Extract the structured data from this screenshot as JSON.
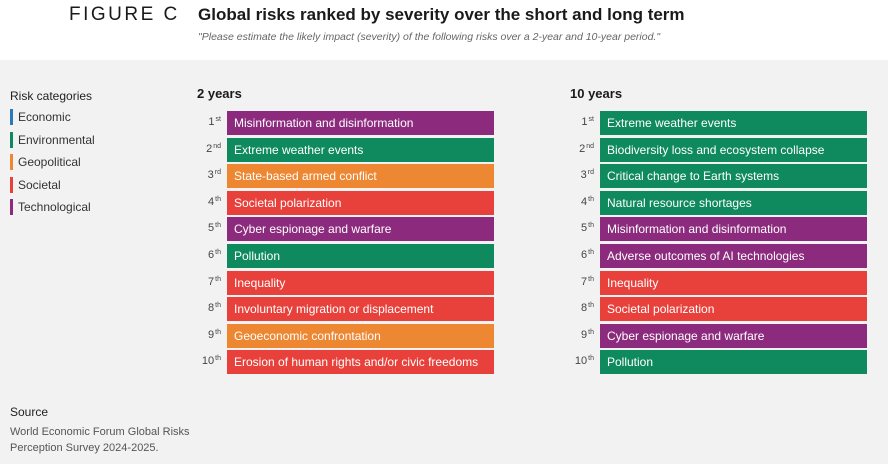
{
  "figure": {
    "label": "FIGURE C",
    "title": "Global risks ranked by severity over the short and long term",
    "subtitle": "\"Please estimate the likely impact (severity) of the following risks over a 2-year and 10-year period.\""
  },
  "legend": {
    "title": "Risk categories",
    "items": [
      {
        "label": "Economic",
        "color": "#2a7ab9"
      },
      {
        "label": "Environmental",
        "color": "#0f8a5f"
      },
      {
        "label": "Geopolitical",
        "color": "#ee8732"
      },
      {
        "label": "Societal",
        "color": "#e8413c"
      },
      {
        "label": "Technological",
        "color": "#8c2b7e"
      }
    ]
  },
  "chart_data": {
    "type": "table",
    "columns": [
      {
        "title": "2 years",
        "rows": [
          {
            "rank": "1",
            "suffix": "st",
            "risk": "Misinformation and disinformation",
            "category": "Technological"
          },
          {
            "rank": "2",
            "suffix": "nd",
            "risk": "Extreme weather events",
            "category": "Environmental"
          },
          {
            "rank": "3",
            "suffix": "rd",
            "risk": "State-based armed conflict",
            "category": "Geopolitical"
          },
          {
            "rank": "4",
            "suffix": "th",
            "risk": "Societal polarization",
            "category": "Societal"
          },
          {
            "rank": "5",
            "suffix": "th",
            "risk": "Cyber espionage and warfare",
            "category": "Technological"
          },
          {
            "rank": "6",
            "suffix": "th",
            "risk": "Pollution",
            "category": "Environmental"
          },
          {
            "rank": "7",
            "suffix": "th",
            "risk": "Inequality",
            "category": "Societal"
          },
          {
            "rank": "8",
            "suffix": "th",
            "risk": "Involuntary migration or displacement",
            "category": "Societal"
          },
          {
            "rank": "9",
            "suffix": "th",
            "risk": "Geoeconomic confrontation",
            "category": "Geopolitical"
          },
          {
            "rank": "10",
            "suffix": "th",
            "risk": "Erosion of human rights and/or civic freedoms",
            "category": "Societal"
          }
        ]
      },
      {
        "title": "10 years",
        "rows": [
          {
            "rank": "1",
            "suffix": "st",
            "risk": "Extreme weather events",
            "category": "Environmental"
          },
          {
            "rank": "2",
            "suffix": "nd",
            "risk": "Biodiversity loss and ecosystem collapse",
            "category": "Environmental"
          },
          {
            "rank": "3",
            "suffix": "rd",
            "risk": "Critical change to Earth systems",
            "category": "Environmental"
          },
          {
            "rank": "4",
            "suffix": "th",
            "risk": "Natural resource shortages",
            "category": "Environmental"
          },
          {
            "rank": "5",
            "suffix": "th",
            "risk": "Misinformation and disinformation",
            "category": "Technological"
          },
          {
            "rank": "6",
            "suffix": "th",
            "risk": "Adverse outcomes of AI technologies",
            "category": "Technological"
          },
          {
            "rank": "7",
            "suffix": "th",
            "risk": "Inequality",
            "category": "Societal"
          },
          {
            "rank": "8",
            "suffix": "th",
            "risk": "Societal polarization",
            "category": "Societal"
          },
          {
            "rank": "9",
            "suffix": "th",
            "risk": "Cyber espionage and warfare",
            "category": "Technological"
          },
          {
            "rank": "10",
            "suffix": "th",
            "risk": "Pollution",
            "category": "Environmental"
          }
        ]
      }
    ]
  },
  "source": {
    "title": "Source",
    "text": "World Economic Forum Global Risks Perception Survey 2024-2025."
  }
}
